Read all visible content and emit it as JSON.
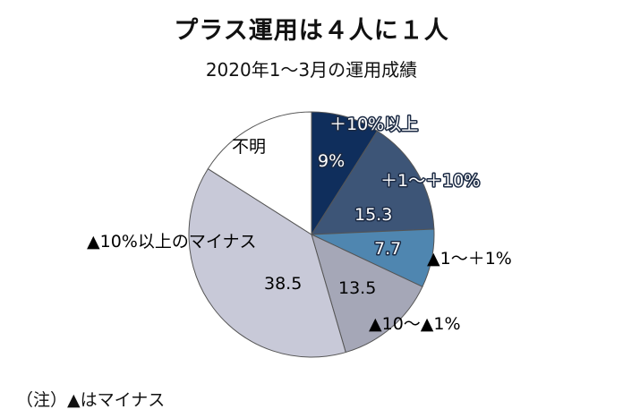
{
  "title": "プラス運用は４人に１人",
  "subtitle": "2020年1～3月の運用成績",
  "note": "（注）▲はマイナス",
  "chart_data": {
    "type": "pie",
    "title": "プラス運用は４人に１人",
    "subtitle": "2020年1～3月の運用成績",
    "slices": [
      {
        "label": "＋10%以上",
        "value": 9,
        "value_label": "9%",
        "color": "#0f2e5c"
      },
      {
        "label": "＋1～＋10%",
        "value": 15.3,
        "value_label": "15.3",
        "color": "#3d5577"
      },
      {
        "label": "▲1～＋1%",
        "value": 7.7,
        "value_label": "7.7",
        "color": "#4f86b0"
      },
      {
        "label": "▲10～▲1%",
        "value": 13.5,
        "value_label": "13.5",
        "color": "#a5a7b7"
      },
      {
        "label": "▲10%以上のマイナス",
        "value": 38.5,
        "value_label": "38.5",
        "color": "#c8c9d8"
      },
      {
        "label": "不明",
        "value": 16.0,
        "value_label": "",
        "color": "#ffffff"
      }
    ],
    "start_angle": "12 o'clock",
    "direction": "clockwise",
    "note": "（注）▲はマイナス"
  }
}
